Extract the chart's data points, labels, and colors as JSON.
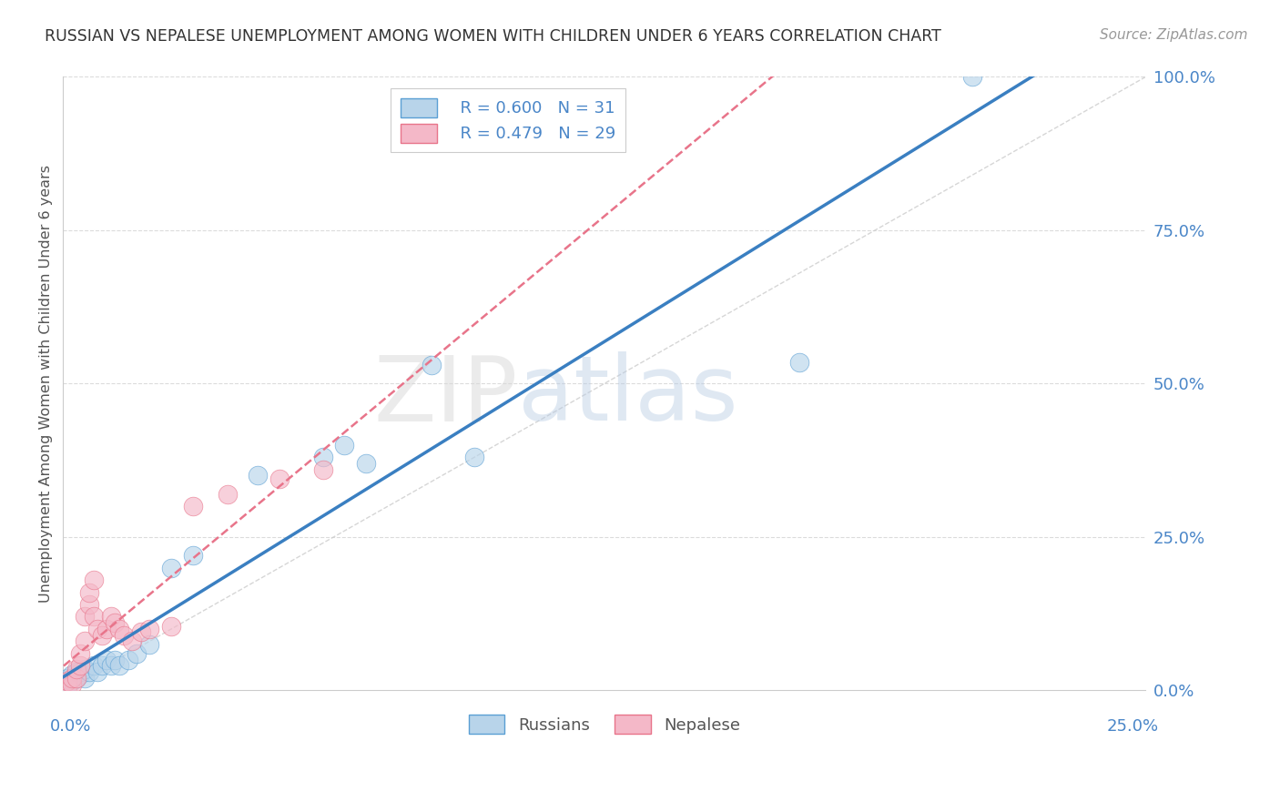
{
  "title": "RUSSIAN VS NEPALESE UNEMPLOYMENT AMONG WOMEN WITH CHILDREN UNDER 6 YEARS CORRELATION CHART",
  "source": "Source: ZipAtlas.com",
  "ylabel": "Unemployment Among Women with Children Under 6 years",
  "xlim": [
    0,
    0.25
  ],
  "ylim": [
    0,
    1.0
  ],
  "watermark_zip": "ZIP",
  "watermark_atlas": "atlas",
  "legend_russian_R": "R = 0.600",
  "legend_russian_N": "N = 31",
  "legend_nepalese_R": "R = 0.479",
  "legend_nepalese_N": "N = 29",
  "russian_color": "#b8d4ea",
  "russian_edge_color": "#5a9fd4",
  "russian_line_color": "#3a7fc1",
  "nepalese_color": "#f4b8c8",
  "nepalese_edge_color": "#e8748a",
  "nepalese_line_color": "#e8748a",
  "background_color": "#ffffff",
  "grid_color": "#cccccc",
  "title_color": "#333333",
  "axis_label_color": "#4a86c8",
  "diag_color": "#cccccc",
  "russian_x": [
    0.001,
    0.001,
    0.002,
    0.002,
    0.003,
    0.003,
    0.004,
    0.004,
    0.005,
    0.005,
    0.006,
    0.007,
    0.008,
    0.009,
    0.01,
    0.011,
    0.012,
    0.013,
    0.015,
    0.017,
    0.02,
    0.025,
    0.03,
    0.045,
    0.06,
    0.065,
    0.07,
    0.085,
    0.095,
    0.17,
    0.21
  ],
  "russian_y": [
    0.01,
    0.02,
    0.015,
    0.025,
    0.02,
    0.03,
    0.025,
    0.03,
    0.02,
    0.035,
    0.03,
    0.04,
    0.03,
    0.04,
    0.05,
    0.04,
    0.05,
    0.04,
    0.05,
    0.06,
    0.075,
    0.2,
    0.22,
    0.35,
    0.38,
    0.4,
    0.37,
    0.53,
    0.38,
    0.535,
    1.0
  ],
  "nepalese_x": [
    0.001,
    0.001,
    0.002,
    0.002,
    0.003,
    0.003,
    0.004,
    0.004,
    0.005,
    0.005,
    0.006,
    0.006,
    0.007,
    0.007,
    0.008,
    0.009,
    0.01,
    0.011,
    0.012,
    0.013,
    0.014,
    0.016,
    0.018,
    0.02,
    0.025,
    0.03,
    0.038,
    0.05,
    0.06
  ],
  "nepalese_y": [
    0.005,
    0.015,
    0.01,
    0.02,
    0.02,
    0.035,
    0.04,
    0.06,
    0.08,
    0.12,
    0.14,
    0.16,
    0.12,
    0.18,
    0.1,
    0.09,
    0.1,
    0.12,
    0.11,
    0.1,
    0.09,
    0.08,
    0.095,
    0.1,
    0.105,
    0.3,
    0.32,
    0.345,
    0.36
  ]
}
